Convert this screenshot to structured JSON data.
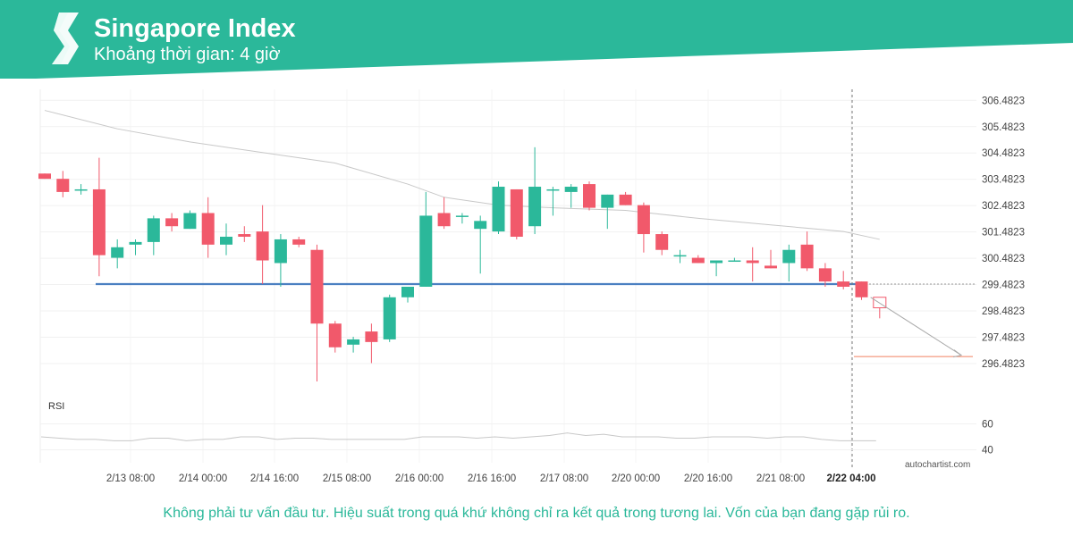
{
  "header": {
    "title": "Singapore Index",
    "subtitle": "Khoảng thời gian: 4 giờ",
    "banner_color": "#2bb89a"
  },
  "footer": {
    "disclaimer": "Không phải tư vấn đầu tư. Hiệu suất trong quá khứ không chỉ ra kết quả trong tương lai. Vốn của bạn đang gặp rủi ro.",
    "watermark": "autochartist.com"
  },
  "chart_data": {
    "type": "candlestick",
    "colors": {
      "up": "#2bb89a",
      "down": "#f1596b",
      "support": "#4a7fc1",
      "target": "#f08060",
      "ma": "#c8c8c8"
    },
    "y_ticks": [
      "306.4823",
      "305.4823",
      "304.4823",
      "303.4823",
      "302.4823",
      "301.4823",
      "300.4823",
      "299.4823",
      "298.4823",
      "297.4823",
      "296.4823"
    ],
    "x_ticks": [
      "2/13 08:00",
      "2/14 00:00",
      "2/14 16:00",
      "2/15 08:00",
      "2/16 00:00",
      "2/16 16:00",
      "2/17 08:00",
      "2/20 00:00",
      "2/20 16:00",
      "2/21 08:00",
      "2/22 04:00"
    ],
    "highlighted_x_tick": "2/22 04:00",
    "ylim": [
      295.7,
      306.9
    ],
    "support_level": 299.5,
    "target_level": 296.75,
    "candles": [
      {
        "o": 303.7,
        "h": 303.7,
        "l": 303.5,
        "c": 303.5
      },
      {
        "o": 303.5,
        "h": 303.8,
        "l": 302.8,
        "c": 303.0
      },
      {
        "o": 303.1,
        "h": 303.3,
        "l": 302.9,
        "c": 303.1
      },
      {
        "o": 303.1,
        "h": 304.3,
        "l": 299.8,
        "c": 300.6
      },
      {
        "o": 300.5,
        "h": 301.2,
        "l": 300.1,
        "c": 300.9
      },
      {
        "o": 301.0,
        "h": 301.2,
        "l": 300.6,
        "c": 301.1
      },
      {
        "o": 301.1,
        "h": 302.1,
        "l": 300.6,
        "c": 302.0
      },
      {
        "o": 302.0,
        "h": 302.2,
        "l": 301.5,
        "c": 301.7
      },
      {
        "o": 301.6,
        "h": 302.3,
        "l": 301.6,
        "c": 302.2
      },
      {
        "o": 302.2,
        "h": 302.8,
        "l": 300.5,
        "c": 301.0
      },
      {
        "o": 301.0,
        "h": 301.8,
        "l": 300.6,
        "c": 301.3
      },
      {
        "o": 301.4,
        "h": 301.7,
        "l": 301.1,
        "c": 301.3
      },
      {
        "o": 301.5,
        "h": 302.5,
        "l": 299.5,
        "c": 300.4
      },
      {
        "o": 300.3,
        "h": 301.4,
        "l": 299.4,
        "c": 301.2
      },
      {
        "o": 301.2,
        "h": 301.3,
        "l": 300.9,
        "c": 301.0
      },
      {
        "o": 300.8,
        "h": 301.0,
        "l": 295.8,
        "c": 298.0
      },
      {
        "o": 298.0,
        "h": 298.1,
        "l": 296.9,
        "c": 297.1
      },
      {
        "o": 297.2,
        "h": 297.5,
        "l": 296.9,
        "c": 297.4
      },
      {
        "o": 297.7,
        "h": 298.0,
        "l": 296.5,
        "c": 297.3
      },
      {
        "o": 297.4,
        "h": 299.1,
        "l": 297.3,
        "c": 299.0
      },
      {
        "o": 299.0,
        "h": 299.4,
        "l": 298.8,
        "c": 299.4
      },
      {
        "o": 299.4,
        "h": 303.0,
        "l": 299.4,
        "c": 302.1
      },
      {
        "o": 302.2,
        "h": 302.8,
        "l": 301.6,
        "c": 301.7
      },
      {
        "o": 302.1,
        "h": 302.2,
        "l": 301.8,
        "c": 302.1
      },
      {
        "o": 301.6,
        "h": 302.1,
        "l": 299.9,
        "c": 301.9
      },
      {
        "o": 301.5,
        "h": 303.4,
        "l": 301.4,
        "c": 303.2
      },
      {
        "o": 303.1,
        "h": 303.1,
        "l": 301.2,
        "c": 301.3
      },
      {
        "o": 301.7,
        "h": 304.7,
        "l": 301.4,
        "c": 303.2
      },
      {
        "o": 303.1,
        "h": 303.2,
        "l": 302.1,
        "c": 303.1
      },
      {
        "o": 303.0,
        "h": 303.3,
        "l": 302.4,
        "c": 303.2
      },
      {
        "o": 303.3,
        "h": 303.4,
        "l": 302.3,
        "c": 302.4
      },
      {
        "o": 302.4,
        "h": 302.9,
        "l": 301.6,
        "c": 302.9
      },
      {
        "o": 302.9,
        "h": 303.0,
        "l": 302.5,
        "c": 302.5
      },
      {
        "o": 302.5,
        "h": 302.6,
        "l": 300.7,
        "c": 301.4
      },
      {
        "o": 301.4,
        "h": 301.5,
        "l": 300.6,
        "c": 300.8
      },
      {
        "o": 300.6,
        "h": 300.8,
        "l": 300.3,
        "c": 300.6
      },
      {
        "o": 300.5,
        "h": 300.6,
        "l": 300.3,
        "c": 300.3
      },
      {
        "o": 300.3,
        "h": 300.4,
        "l": 299.8,
        "c": 300.4
      },
      {
        "o": 300.4,
        "h": 300.5,
        "l": 300.4,
        "c": 300.4
      },
      {
        "o": 300.4,
        "h": 300.9,
        "l": 299.6,
        "c": 300.3
      },
      {
        "o": 300.2,
        "h": 300.8,
        "l": 300.1,
        "c": 300.1
      },
      {
        "o": 300.3,
        "h": 301.0,
        "l": 299.6,
        "c": 300.8
      },
      {
        "o": 301.0,
        "h": 301.5,
        "l": 300.0,
        "c": 300.1
      },
      {
        "o": 300.1,
        "h": 300.3,
        "l": 299.4,
        "c": 299.6
      },
      {
        "o": 299.6,
        "h": 300.0,
        "l": 299.3,
        "c": 299.4
      },
      {
        "o": 299.6,
        "h": 299.6,
        "l": 298.9,
        "c": 299.0
      }
    ],
    "forecast_candle": {
      "o": 299.0,
      "h": 298.9,
      "l": 298.2,
      "c": 298.6
    },
    "ma_points": [
      [
        0,
        306.1
      ],
      [
        4,
        305.4
      ],
      [
        8,
        304.9
      ],
      [
        12,
        304.5
      ],
      [
        16,
        304.1
      ],
      [
        20,
        303.3
      ],
      [
        22,
        302.8
      ],
      [
        25,
        302.5
      ],
      [
        28,
        302.4
      ],
      [
        32,
        302.3
      ],
      [
        36,
        302.0
      ],
      [
        40,
        301.75
      ],
      [
        44,
        301.5
      ],
      [
        46,
        301.2
      ]
    ],
    "forecast_arrow": {
      "from_x_index": 45.5,
      "from_y": 299.0,
      "to_y": 296.8
    },
    "rsi": {
      "label": "RSI",
      "ticks": [
        "60",
        "40"
      ],
      "ylim": [
        30,
        70
      ],
      "values": [
        50,
        49,
        48,
        48,
        47,
        47,
        49,
        49,
        47,
        48,
        48,
        50,
        50,
        48,
        49,
        49,
        48,
        48,
        48,
        48,
        48,
        50,
        50,
        50,
        49,
        50,
        49,
        50,
        51,
        53,
        51,
        52,
        50,
        50,
        50,
        49,
        49,
        50,
        50,
        50,
        49,
        50,
        50,
        48,
        47,
        47,
        47
      ]
    }
  }
}
